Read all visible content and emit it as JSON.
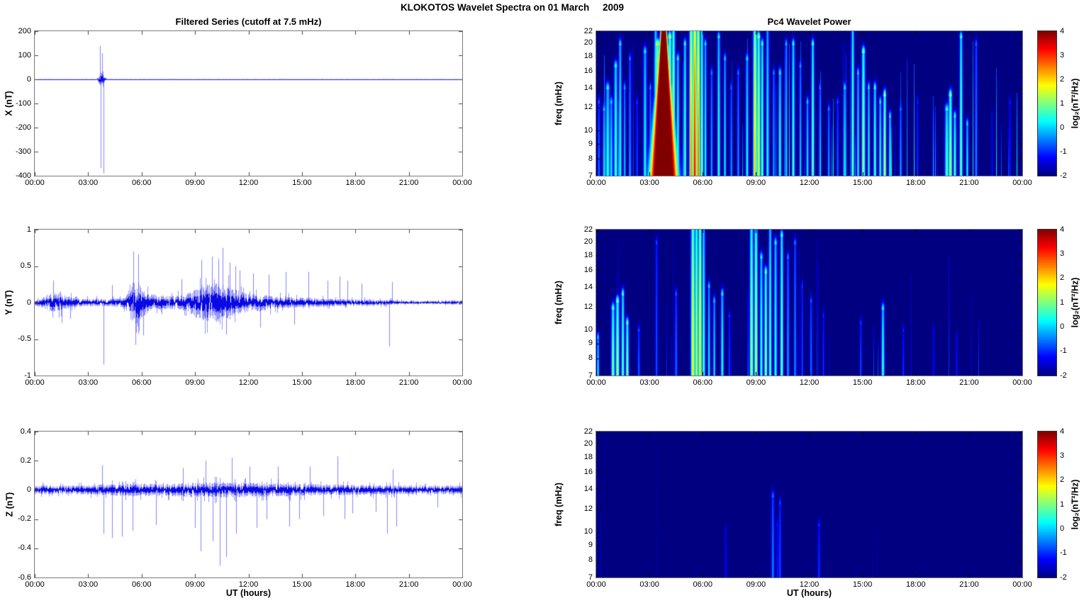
{
  "figure": {
    "title": "KLOKOTOS Wavelet Spectra on 01 March     2009",
    "left_title": "Filtered Series (cutoff at 7.5 mHz)",
    "right_title": "Pc4 Wavelet Power",
    "xlabel": "UT (hours)",
    "x_tick_labels": [
      "00:00",
      "03:00",
      "06:00",
      "09:00",
      "12:00",
      "15:00",
      "18:00",
      "21:00",
      "00:00"
    ],
    "x_ticks_hours": [
      0,
      3,
      6,
      9,
      12,
      15,
      18,
      21,
      24
    ],
    "line_color": "#0000ee",
    "heat_background_color": "#00008f",
    "colorbar": {
      "label": "log₂(nT²/Hz)",
      "ticks": [
        4,
        3,
        2,
        1,
        0,
        -1,
        -2
      ],
      "range": [
        -2,
        4
      ],
      "colormap": "jet"
    }
  },
  "chart_data": [
    {
      "name": "x-filtered-series",
      "type": "line",
      "ylabel": "X (nT)",
      "ylim": [
        -400,
        200
      ],
      "yticks": [
        200,
        100,
        0,
        -100,
        -200,
        -300,
        -400
      ],
      "xlim_hours": [
        0,
        24
      ],
      "description": "Flat near 0 nT all day except an impulsive burst near 03:40-04:00 UT",
      "noise_envelope": [
        [
          0,
          0.8
        ],
        [
          3.5,
          0.8
        ],
        [
          3.6,
          20
        ],
        [
          3.75,
          30
        ],
        [
          3.9,
          15
        ],
        [
          4.05,
          0.8
        ],
        [
          24,
          0.8
        ]
      ],
      "spikes": [
        [
          3.66,
          140
        ],
        [
          3.7,
          -368
        ],
        [
          3.8,
          108
        ],
        [
          3.85,
          -390
        ]
      ],
      "seed": 11
    },
    {
      "name": "y-filtered-series",
      "type": "line",
      "ylabel": "Y (nT)",
      "ylim": [
        -1,
        1
      ],
      "yticks": [
        1,
        0.5,
        0,
        -0.5,
        -1
      ],
      "xlim_hours": [
        0,
        24
      ],
      "description": "Noise bursts near 01:00, 05:30-06:00 and 09:00-11:30 UT, decaying to quiet after 20:00",
      "noise_envelope": [
        [
          0,
          0.045
        ],
        [
          0.4,
          0.07
        ],
        [
          0.8,
          0.12
        ],
        [
          1.2,
          0.13
        ],
        [
          1.6,
          0.11
        ],
        [
          2.2,
          0.07
        ],
        [
          2.8,
          0.05
        ],
        [
          3.4,
          0.06
        ],
        [
          4.0,
          0.05
        ],
        [
          4.6,
          0.06
        ],
        [
          5.1,
          0.08
        ],
        [
          5.4,
          0.26
        ],
        [
          5.7,
          0.3
        ],
        [
          6.0,
          0.22
        ],
        [
          6.4,
          0.13
        ],
        [
          7.0,
          0.1
        ],
        [
          7.6,
          0.09
        ],
        [
          8.2,
          0.1
        ],
        [
          8.7,
          0.14
        ],
        [
          9.1,
          0.22
        ],
        [
          9.6,
          0.26
        ],
        [
          10.1,
          0.28
        ],
        [
          10.6,
          0.26
        ],
        [
          11.1,
          0.2
        ],
        [
          11.6,
          0.15
        ],
        [
          12.2,
          0.12
        ],
        [
          13.0,
          0.1
        ],
        [
          14.0,
          0.08
        ],
        [
          15.0,
          0.07
        ],
        [
          16.0,
          0.06
        ],
        [
          17.0,
          0.05
        ],
        [
          18.0,
          0.045
        ],
        [
          19.0,
          0.04
        ],
        [
          20.0,
          0.035
        ],
        [
          20.5,
          0.025
        ],
        [
          21.5,
          0.022
        ],
        [
          22.5,
          0.022
        ],
        [
          23.5,
          0.025
        ],
        [
          24,
          0.03
        ]
      ],
      "spikes": [
        [
          1.05,
          0.3
        ],
        [
          1.5,
          -0.28
        ],
        [
          2.0,
          -0.22
        ],
        [
          3.85,
          -0.85
        ],
        [
          4.35,
          0.24
        ],
        [
          5.55,
          0.7
        ],
        [
          5.65,
          -0.58
        ],
        [
          5.8,
          0.66
        ],
        [
          6.1,
          -0.45
        ],
        [
          8.25,
          0.32
        ],
        [
          9.35,
          0.58
        ],
        [
          9.95,
          0.63
        ],
        [
          10.3,
          0.6
        ],
        [
          10.55,
          0.75
        ],
        [
          10.75,
          -0.44
        ],
        [
          10.95,
          0.55
        ],
        [
          11.25,
          0.5
        ],
        [
          11.5,
          0.44
        ],
        [
          12.25,
          0.4
        ],
        [
          12.65,
          -0.34
        ],
        [
          13.15,
          0.38
        ],
        [
          14.1,
          0.42
        ],
        [
          14.55,
          -0.3
        ],
        [
          15.35,
          0.42
        ],
        [
          16.45,
          0.3
        ],
        [
          17.1,
          0.36
        ],
        [
          17.55,
          0.3
        ],
        [
          18.35,
          0.26
        ],
        [
          19.9,
          -0.6
        ],
        [
          20.05,
          0.28
        ]
      ],
      "seed": 22
    },
    {
      "name": "z-filtered-series",
      "type": "line",
      "ylabel": "Z (nT)",
      "ylim": [
        -0.6,
        0.4
      ],
      "yticks": [
        0.4,
        0.2,
        0,
        -0.2,
        -0.4,
        -0.6
      ],
      "xlim_hours": [
        0,
        24
      ],
      "description": "Low-level noise all day, slightly enhanced 04:00-16:00 with impulsive spikes",
      "noise_envelope": [
        [
          0,
          0.032
        ],
        [
          2,
          0.03
        ],
        [
          4,
          0.038
        ],
        [
          5.8,
          0.045
        ],
        [
          7,
          0.04
        ],
        [
          9,
          0.05
        ],
        [
          10.4,
          0.055
        ],
        [
          12,
          0.048
        ],
        [
          14,
          0.045
        ],
        [
          16,
          0.04
        ],
        [
          18,
          0.035
        ],
        [
          20,
          0.033
        ],
        [
          22,
          0.03
        ],
        [
          24,
          0.032
        ]
      ],
      "spikes": [
        [
          3.8,
          0.17
        ],
        [
          3.85,
          -0.3
        ],
        [
          4.35,
          -0.33
        ],
        [
          4.9,
          -0.32
        ],
        [
          5.5,
          -0.28
        ],
        [
          6.8,
          -0.24
        ],
        [
          8.3,
          0.15
        ],
        [
          9.0,
          -0.26
        ],
        [
          9.3,
          -0.42
        ],
        [
          9.6,
          0.2
        ],
        [
          10.0,
          -0.35
        ],
        [
          10.4,
          -0.52
        ],
        [
          10.75,
          -0.46
        ],
        [
          11.05,
          0.22
        ],
        [
          11.3,
          -0.3
        ],
        [
          12.05,
          0.16
        ],
        [
          12.45,
          -0.26
        ],
        [
          13.0,
          -0.2
        ],
        [
          13.65,
          0.16
        ],
        [
          14.3,
          -0.25
        ],
        [
          14.85,
          -0.2
        ],
        [
          15.45,
          0.16
        ],
        [
          16.2,
          -0.18
        ],
        [
          17.0,
          0.23
        ],
        [
          17.4,
          -0.2
        ],
        [
          17.85,
          -0.16
        ],
        [
          19.15,
          -0.15
        ],
        [
          19.8,
          -0.3
        ],
        [
          20.1,
          0.14
        ],
        [
          20.3,
          -0.25
        ],
        [
          22.6,
          -0.12
        ]
      ],
      "seed": 33
    },
    {
      "name": "x-wavelet-power",
      "type": "heatmap",
      "ylabel": "freq (mHz)",
      "yscale": "log",
      "ylim_mhz": [
        7,
        22
      ],
      "yticks": [
        22,
        20,
        18,
        16,
        14,
        12,
        10,
        9,
        8,
        7
      ],
      "xlim_hours": [
        0,
        24
      ],
      "zlim": [
        -2,
        4
      ],
      "description": "Saturated dark-red power wedge ~03:50, red streaks ~05:30-05:50, yellow-green ~09:00, many cyan streaks",
      "events_format": "[time_h, sigma_h, peak_log2_power, freq_extent_fraction_from_bottom]",
      "wedge": {
        "t": 3.8,
        "w": 0.55
      },
      "events": [
        [
          0.15,
          0.05,
          -0.5,
          0.5
        ],
        [
          0.45,
          0.06,
          0.2,
          0.45
        ],
        [
          0.65,
          0.08,
          0.6,
          0.6
        ],
        [
          0.85,
          0.06,
          0.3,
          0.5
        ],
        [
          1.1,
          0.07,
          0.8,
          0.75
        ],
        [
          1.35,
          0.06,
          0.5,
          0.9
        ],
        [
          1.6,
          0.05,
          0,
          0.6
        ],
        [
          1.9,
          0.05,
          -0.3,
          0.8
        ],
        [
          2.3,
          0.05,
          -0.8,
          0.5
        ],
        [
          2.75,
          0.07,
          0.4,
          0.85
        ],
        [
          3.05,
          0.05,
          -0.2,
          0.6
        ],
        [
          3.35,
          0.06,
          0.9,
          1.0
        ],
        [
          3.45,
          0.1,
          2.0,
          0.9
        ],
        [
          4.15,
          0.08,
          1.8,
          0.95
        ],
        [
          4.35,
          0.07,
          1.6,
          1.0
        ],
        [
          4.6,
          0.06,
          0.6,
          0.8
        ],
        [
          5.0,
          0.06,
          0.8,
          0.9
        ],
        [
          5.35,
          0.07,
          2.6,
          1.0
        ],
        [
          5.55,
          0.08,
          3.4,
          1.0
        ],
        [
          5.75,
          0.07,
          2.8,
          1.0
        ],
        [
          5.95,
          0.06,
          1.2,
          1.0
        ],
        [
          6.15,
          0.05,
          0.5,
          0.9
        ],
        [
          6.5,
          0.05,
          -0.2,
          0.7
        ],
        [
          6.9,
          0.06,
          0.6,
          0.95
        ],
        [
          7.25,
          0.05,
          0.3,
          0.8
        ],
        [
          7.6,
          0.05,
          -0.5,
          0.6
        ],
        [
          8.0,
          0.05,
          -0.3,
          0.7
        ],
        [
          8.5,
          0.06,
          0.4,
          0.8
        ],
        [
          8.95,
          0.08,
          2.2,
          1.0
        ],
        [
          9.15,
          0.07,
          1.6,
          0.95
        ],
        [
          9.35,
          0.06,
          1.0,
          0.9
        ],
        [
          9.65,
          0.06,
          0.5,
          1.0
        ],
        [
          10.0,
          0.05,
          -0.2,
          0.7
        ],
        [
          10.35,
          0.06,
          0.6,
          0.7
        ],
        [
          10.7,
          0.05,
          0.2,
          0.9
        ],
        [
          11.1,
          0.06,
          0.8,
          0.9
        ],
        [
          11.5,
          0.05,
          -0.1,
          0.75
        ],
        [
          11.9,
          0.05,
          0.3,
          0.5
        ],
        [
          12.2,
          0.06,
          1.0,
          0.9
        ],
        [
          12.6,
          0.05,
          -0.4,
          0.6
        ],
        [
          13.1,
          0.05,
          -0.2,
          0.45
        ],
        [
          13.6,
          0.05,
          -0.6,
          0.5
        ],
        [
          14.0,
          0.06,
          0.3,
          0.6
        ],
        [
          14.45,
          0.06,
          1.0,
          1.0
        ],
        [
          14.75,
          0.05,
          0.4,
          0.7
        ],
        [
          15.05,
          0.07,
          1.3,
          0.85
        ],
        [
          15.35,
          0.05,
          0.5,
          0.6
        ],
        [
          15.7,
          0.06,
          0.8,
          0.6
        ],
        [
          16.0,
          0.05,
          0.6,
          0.5
        ],
        [
          16.25,
          0.06,
          1.6,
          0.55
        ],
        [
          16.55,
          0.05,
          0.7,
          0.4
        ],
        [
          17.15,
          0.05,
          -0.3,
          0.45
        ],
        [
          18.1,
          0.04,
          -0.9,
          0.5
        ],
        [
          19.0,
          0.04,
          -1.0,
          0.4
        ],
        [
          19.75,
          0.08,
          0.8,
          0.45
        ],
        [
          19.95,
          0.07,
          1.4,
          0.55
        ],
        [
          20.2,
          0.06,
          0.8,
          0.4
        ],
        [
          20.55,
          0.06,
          1.0,
          0.95
        ],
        [
          20.9,
          0.05,
          0.4,
          0.35
        ],
        [
          21.4,
          0.05,
          -0.3,
          0.9
        ],
        [
          22.3,
          0.04,
          -1.2,
          0.4
        ],
        [
          23.3,
          0.04,
          -1.0,
          0.5
        ]
      ],
      "minor_streak_density": 0.08,
      "minor_streak_strength": 1.0,
      "seed": 44
    },
    {
      "name": "y-wavelet-power",
      "type": "heatmap",
      "ylabel": "freq (mHz)",
      "yscale": "log",
      "ylim_mhz": [
        7,
        22
      ],
      "yticks": [
        22,
        20,
        18,
        16,
        14,
        12,
        10,
        9,
        8,
        7
      ],
      "xlim_hours": [
        0,
        24
      ],
      "zlim": [
        -2,
        4
      ],
      "description": "Green-yellow streaks ~05:30-06:00 and ~09:00-10:30, cyan-green cluster ~01:00-02:00 at low freq, faint streak ~16:10",
      "events_format": "[time_h, sigma_h, peak_log2_power, freq_extent_fraction_from_bottom]",
      "wedge": null,
      "events": [
        [
          0.1,
          0.05,
          0.3,
          0.25
        ],
        [
          0.95,
          0.07,
          1.1,
          0.45
        ],
        [
          1.2,
          0.07,
          1.4,
          0.5
        ],
        [
          1.5,
          0.06,
          0.9,
          0.55
        ],
        [
          1.75,
          0.06,
          1.2,
          0.35
        ],
        [
          2.4,
          0.05,
          -0.6,
          0.3
        ],
        [
          3.4,
          0.05,
          -0.7,
          0.9
        ],
        [
          4.5,
          0.05,
          -0.5,
          0.55
        ],
        [
          5.45,
          0.08,
          1.9,
          1.0
        ],
        [
          5.65,
          0.07,
          1.5,
          1.0
        ],
        [
          5.85,
          0.07,
          2.1,
          1.0
        ],
        [
          6.05,
          0.06,
          0.8,
          1.0
        ],
        [
          6.35,
          0.05,
          0.3,
          0.6
        ],
        [
          6.65,
          0.05,
          0.2,
          0.5
        ],
        [
          7.1,
          0.06,
          0.5,
          0.55
        ],
        [
          7.5,
          0.04,
          -0.8,
          0.4
        ],
        [
          8.75,
          0.07,
          1.4,
          1.0
        ],
        [
          9.0,
          0.07,
          1.5,
          1.0
        ],
        [
          9.3,
          0.06,
          0.7,
          0.8
        ],
        [
          9.55,
          0.06,
          1.3,
          0.7
        ],
        [
          9.8,
          0.06,
          0.8,
          1.0
        ],
        [
          10.1,
          0.06,
          0.6,
          0.9
        ],
        [
          10.45,
          0.06,
          1.1,
          0.95
        ],
        [
          10.8,
          0.05,
          -0.2,
          0.8
        ],
        [
          11.2,
          0.05,
          -0.3,
          0.9
        ],
        [
          11.6,
          0.04,
          -0.7,
          0.6
        ],
        [
          12.1,
          0.05,
          -0.5,
          0.5
        ],
        [
          12.8,
          0.04,
          -0.9,
          0.4
        ],
        [
          14.9,
          0.04,
          -0.7,
          0.35
        ],
        [
          16.15,
          0.06,
          0.7,
          0.45
        ],
        [
          17.3,
          0.04,
          -0.9,
          0.3
        ],
        [
          19.0,
          0.04,
          -1.2,
          0.3
        ],
        [
          20.3,
          0.04,
          -1.1,
          0.25
        ]
      ],
      "minor_streak_density": 0.04,
      "minor_streak_strength": 0.55,
      "seed": 55
    },
    {
      "name": "z-wavelet-power",
      "type": "heatmap",
      "ylabel": "freq (mHz)",
      "yscale": "log",
      "ylim_mhz": [
        7,
        22
      ],
      "yticks": [
        22,
        20,
        18,
        16,
        14,
        12,
        10,
        9,
        8,
        7
      ],
      "xlim_hours": [
        0,
        24
      ],
      "zlim": [
        -2,
        4
      ],
      "description": "Nearly uniform background power; very faint blue streaks near 10:00, 10:20 and 12:30",
      "events_format": "[time_h, sigma_h, peak_log2_power, freq_extent_fraction_from_bottom]",
      "wedge": null,
      "events": [
        [
          7.3,
          0.05,
          -1.3,
          0.3
        ],
        [
          9.95,
          0.06,
          -0.4,
          0.55
        ],
        [
          10.2,
          0.04,
          -1.0,
          0.35
        ],
        [
          10.35,
          0.05,
          -0.7,
          0.5
        ],
        [
          12.55,
          0.05,
          -0.9,
          0.35
        ]
      ],
      "minor_streak_density": 0.006,
      "minor_streak_strength": 0.25,
      "seed": 66
    }
  ]
}
